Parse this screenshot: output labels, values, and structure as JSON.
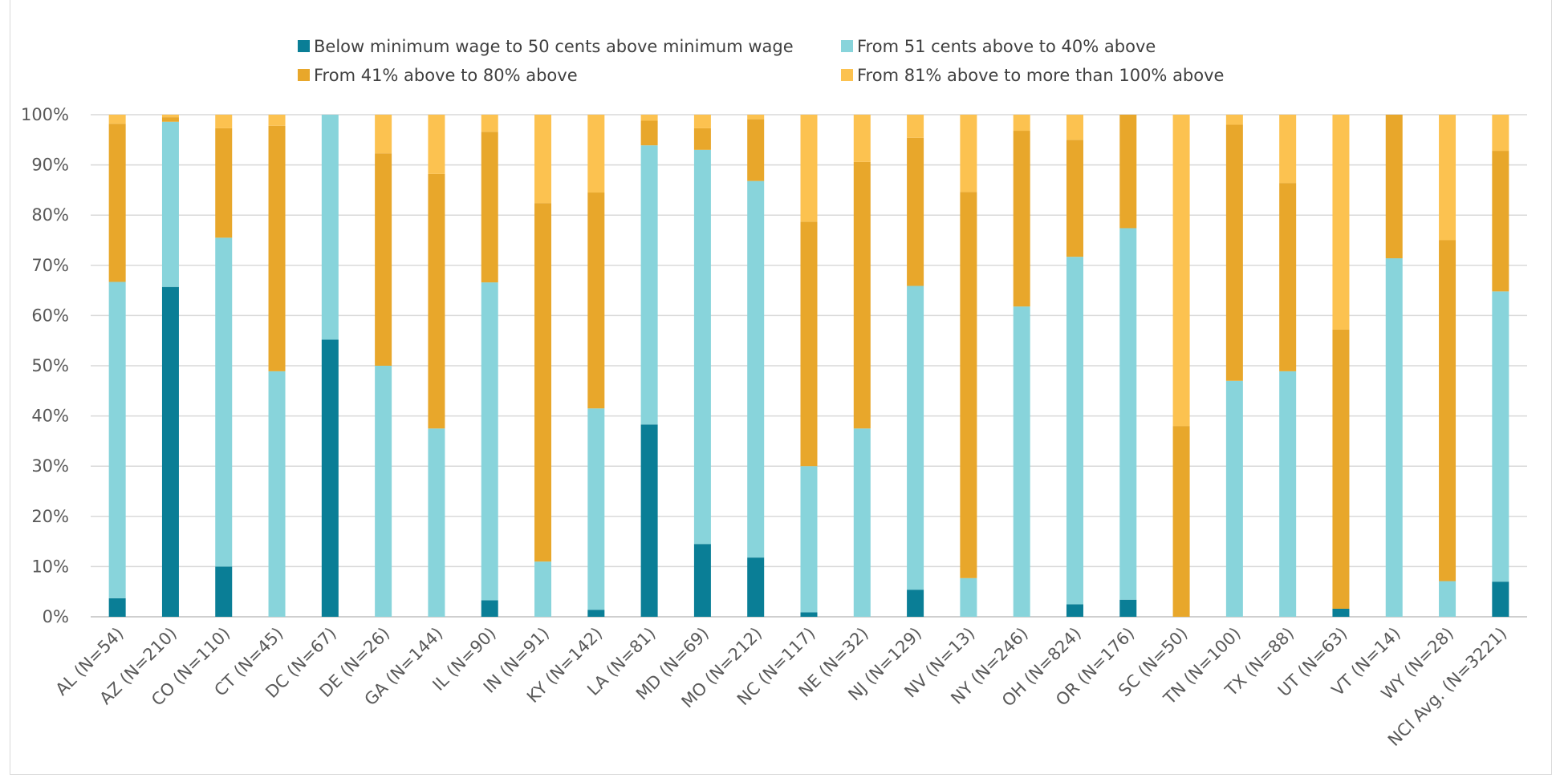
{
  "chart_data": {
    "type": "bar",
    "stacked": true,
    "ylim": [
      0,
      100
    ],
    "yticks": [
      "0%",
      "10%",
      "20%",
      "30%",
      "40%",
      "50%",
      "60%",
      "70%",
      "80%",
      "90%",
      "100%"
    ],
    "grid": true,
    "legend_position": "top",
    "categories": [
      "AL (N=54)",
      "AZ (N=210)",
      "CO (N=110)",
      "CT (N=45)",
      "DC (N=67)",
      "DE (N=26)",
      "GA (N=144)",
      "IL (N=90)",
      "IN (N=91)",
      "KY (N=142)",
      "LA (N=81)",
      "MD (N=69)",
      "MO (N=212)",
      "NC (N=117)",
      "NE (N=32)",
      "NJ (N=129)",
      "NV (N=13)",
      "NY (N=246)",
      "OH (N=824)",
      "OR (N=176)",
      "SC (N=50)",
      "TN (N=100)",
      "TX (N=88)",
      "UT (N=63)",
      "VT (N=14)",
      "WY (N=28)",
      "NCI Avg.  (N=3221)"
    ],
    "series": [
      {
        "name": "Below minimum wage to 50 cents above minimum wage",
        "color": "#0a7e96",
        "values": [
          3.7,
          65.7,
          10.0,
          0.0,
          55.2,
          0.0,
          0.0,
          3.3,
          0.0,
          1.4,
          38.3,
          14.5,
          11.8,
          0.9,
          0.0,
          5.4,
          0.0,
          0.0,
          2.5,
          3.4,
          0.0,
          0.0,
          0.0,
          1.6,
          0.0,
          0.0,
          7.0
        ]
      },
      {
        "name": "From 51 cents above to 40% above",
        "color": "#88d4db",
        "values": [
          63.0,
          32.9,
          65.5,
          48.9,
          44.8,
          50.0,
          37.5,
          63.3,
          11.0,
          40.1,
          55.6,
          78.5,
          75.0,
          29.1,
          37.5,
          60.5,
          7.7,
          61.8,
          69.2,
          74.0,
          0.0,
          47.0,
          48.9,
          0.0,
          71.4,
          7.1,
          57.8
        ]
      },
      {
        "name": "From 41% above to 80% above",
        "color": "#e8a72b",
        "values": [
          31.5,
          0.9,
          21.8,
          48.9,
          0.0,
          42.3,
          50.7,
          30.0,
          71.4,
          43.0,
          4.9,
          4.3,
          12.3,
          48.7,
          53.1,
          29.5,
          76.9,
          35.0,
          23.3,
          22.6,
          38.0,
          51.0,
          37.5,
          55.6,
          28.6,
          67.9,
          28.0
        ]
      },
      {
        "name": "From 81% above to more than 100% above",
        "color": "#fcc250",
        "values": [
          1.8,
          0.5,
          2.7,
          2.2,
          0.0,
          7.7,
          11.8,
          3.4,
          17.6,
          15.5,
          1.2,
          2.7,
          0.9,
          21.3,
          9.4,
          4.6,
          15.4,
          3.2,
          5.0,
          0.0,
          62.0,
          2.0,
          13.6,
          42.8,
          0.0,
          25.0,
          7.2
        ]
      }
    ]
  }
}
